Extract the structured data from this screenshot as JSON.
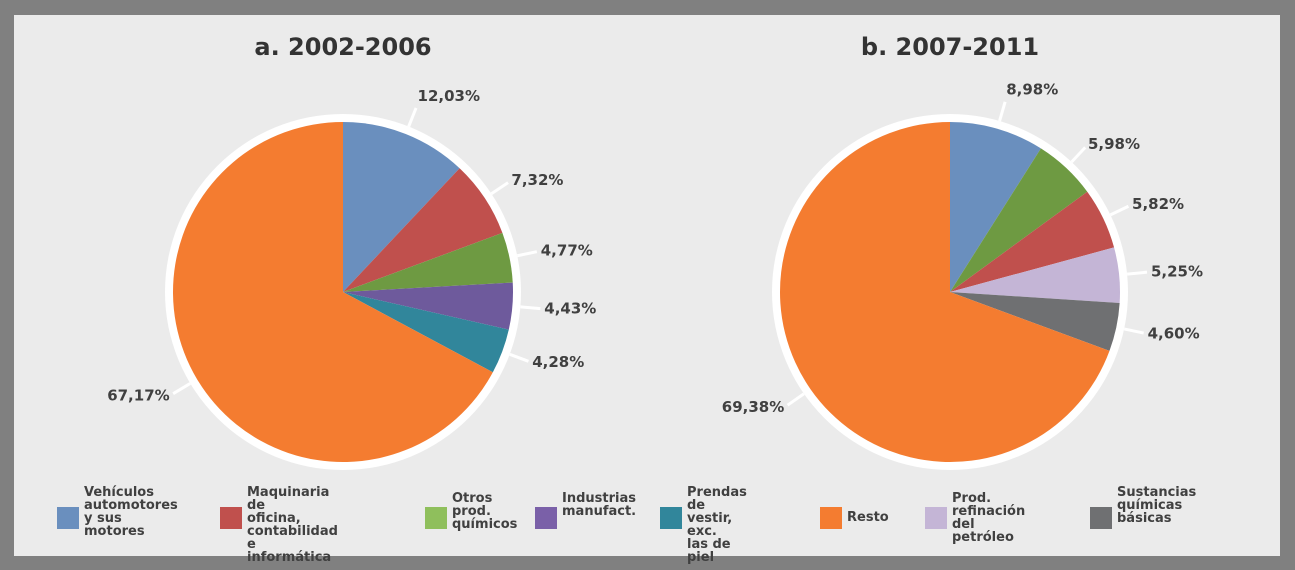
{
  "chart_data": [
    {
      "type": "pie",
      "title": "a. 2002-2006",
      "values": [
        12.03,
        7.32,
        4.77,
        4.43,
        4.28,
        67.17
      ],
      "value_labels": [
        "12,03%",
        "7,32%",
        "4,77%",
        "4,43%",
        "4,28%",
        "67,17%"
      ],
      "colors": [
        "#6a8fbe",
        "#c0504d",
        "#6e9a42",
        "#6e5a9c",
        "#31869b",
        "#f47c30"
      ]
    },
    {
      "type": "pie",
      "title": "b. 2007-2011",
      "values": [
        8.98,
        5.98,
        5.82,
        5.25,
        4.6,
        69.38
      ],
      "value_labels": [
        "8,98%",
        "5,98%",
        "5,82%",
        "5,25%",
        "4,60%",
        "69,38%"
      ],
      "colors": [
        "#6a8fbe",
        "#6e9a42",
        "#c0504d",
        "#c4b5d6",
        "#6f7072",
        "#f47c30"
      ]
    }
  ],
  "legend": [
    {
      "name": "Vehículos\nautomotores\ny sus motores",
      "color": "#6a8fbe"
    },
    {
      "name": "Maquinaria de\noficina, contabilidad\ne informática",
      "color": "#c0504d"
    },
    {
      "name": "Otros prod.\nquímicos",
      "color": "#8fbf5c"
    },
    {
      "name": "Industrias\nmanufact.",
      "color": "#7a60a8"
    },
    {
      "name": "Prendas de\nvestir, exc.\nlas de piel",
      "color": "#31869b"
    },
    {
      "name": "Resto",
      "color": "#f47c30"
    },
    {
      "name": "Prod. refinación\ndel petróleo",
      "color": "#c4b5d6"
    },
    {
      "name": "Sustancias\nquímicas\nbásicas",
      "color": "#6f7072"
    }
  ]
}
